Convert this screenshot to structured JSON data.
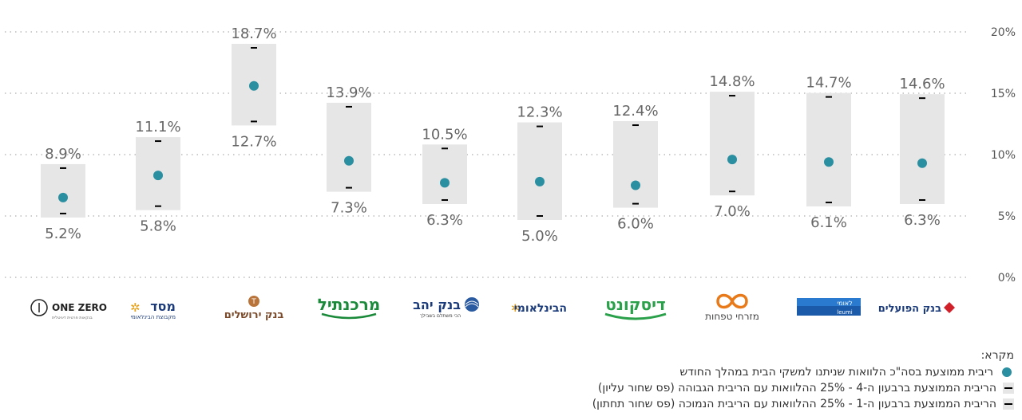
{
  "chart_data": {
    "type": "range-dot",
    "ylim": [
      0,
      20
    ],
    "yticks": [
      "0%",
      "5%",
      "10%",
      "15%",
      "20%"
    ],
    "grid": true,
    "categories": [
      "ONE ZERO",
      "מסד",
      "בנק ירושלים",
      "מרכנתיל",
      "בנק יהב",
      "הבינלאומי",
      "דיסקונט",
      "מזרחי טפחות",
      "לאומי",
      "בנק הפועלים"
    ],
    "series": [
      {
        "name": "ריבית ממוצעת בסה\"כ הלוואות שניתנו למשקי הבית במהלך החודש",
        "values": [
          6.5,
          8.3,
          15.6,
          9.5,
          7.7,
          7.8,
          7.5,
          9.6,
          9.4,
          9.3
        ]
      },
      {
        "name": "הריבית הממוצעת ברבעון ה-4 - 25% ההלוואות עם הריבית הגבוהה (פס שחור עליון)",
        "values": [
          8.9,
          11.1,
          18.7,
          13.9,
          10.5,
          12.3,
          12.4,
          14.8,
          14.7,
          14.6
        ]
      },
      {
        "name": "הריבית הממוצעת ברבעון ה-1 - 25% ההלוואות עם הריבית הנמוכה (פס שחור תחתון)",
        "values": [
          5.2,
          5.8,
          12.7,
          7.3,
          6.3,
          5.0,
          6.0,
          7.0,
          6.1,
          6.3
        ]
      }
    ],
    "high_labels": [
      "8.9%",
      "11.1%",
      "18.7%",
      "13.9%",
      "10.5%",
      "12.3%",
      "12.4%",
      "14.8%",
      "14.7%",
      "14.6%"
    ],
    "low_labels": [
      "5.2%",
      "5.8%",
      "12.7%",
      "7.3%",
      "6.3%",
      "5.0%",
      "6.0%",
      "7.0%",
      "6.1%",
      "6.3%"
    ],
    "colors": {
      "dot": "#2a8fa0",
      "band": "#e6e6e6",
      "bar": "#000000",
      "grid": "#bbbbbb"
    }
  },
  "logos": {
    "onezero": {
      "main": "ONE ZERO",
      "sub": "בנקאות פרטית דיגיטלית"
    },
    "masad": {
      "main": "מסד",
      "sub": "מקבוצת הבינלאומי"
    },
    "jerusalem": {
      "main": "בנק ירושלים"
    },
    "mercantile": {
      "main": "מרכנתיל"
    },
    "yahav": {
      "main": "בנק יהב",
      "sub": "הכי משתלם בשבילך"
    },
    "beinleumi": {
      "main": "הבינלאומי"
    },
    "discount": {
      "main": "דיסקונט"
    },
    "mizrahi": {
      "main": "מזרחי טפחות"
    },
    "leumi": {
      "main": "לאומי",
      "sub": "leumi"
    },
    "hapoalim": {
      "main": "בנק הפועלים"
    }
  },
  "legend": {
    "title": "מקרא:",
    "items": [
      "ריבית ממוצעת בסה\"כ הלוואות שניתנו למשקי הבית במהלך החודש",
      "הריבית הממוצעת ברבעון ה-4 - 25% ההלוואות עם הריבית הגבוהה (פס שחור עליון)",
      "הריבית הממוצעת ברבעון ה-1 - 25% ההלוואות עם הריבית הנמוכה (פס שחור תחתון)"
    ]
  }
}
